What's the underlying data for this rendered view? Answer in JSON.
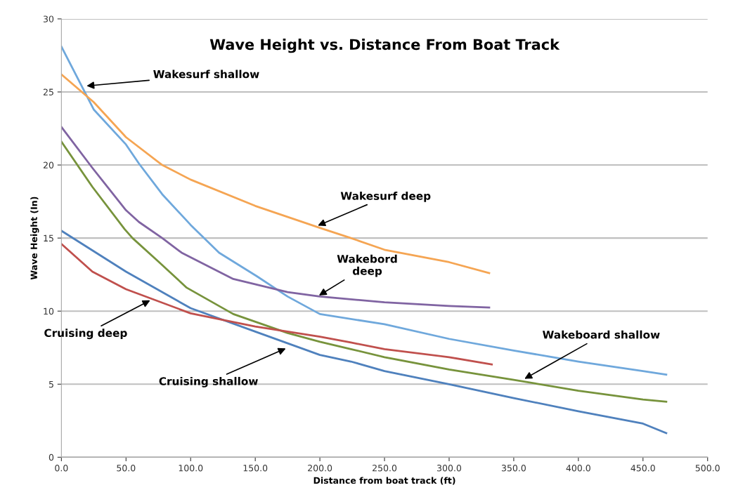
{
  "chart_data": {
    "type": "line",
    "title": "Wave Height vs. Distance From Boat Track",
    "xlabel": "Distance from boat track (ft)",
    "ylabel": "Wave Height (In)",
    "xlim": [
      0,
      500
    ],
    "ylim": [
      0,
      30
    ],
    "xticks": [
      {
        "value": 0,
        "label": "0.0"
      },
      {
        "value": 50,
        "label": "50.0"
      },
      {
        "value": 100,
        "label": "100.0"
      },
      {
        "value": 150,
        "label": "150.0"
      },
      {
        "value": 200,
        "label": "200.0"
      },
      {
        "value": 250,
        "label": "250.0"
      },
      {
        "value": 300,
        "label": "300.0"
      },
      {
        "value": 350,
        "label": "350.0"
      },
      {
        "value": 400,
        "label": "400.0"
      },
      {
        "value": 450,
        "label": "450.0"
      },
      {
        "value": 500,
        "label": "500.0"
      }
    ],
    "yticks": [
      0,
      5,
      10,
      15,
      20,
      25,
      30
    ],
    "grid": "y",
    "marker": "none",
    "line_style": "solid",
    "series": [
      {
        "color": "#6fa8dc",
        "x": [
          0,
          25,
          50,
          60,
          78,
          100,
          122,
          151,
          175,
          200,
          250,
          300,
          350,
          400,
          450,
          468
        ],
        "values": [
          28.1,
          23.8,
          21.4,
          20.1,
          18.0,
          15.9,
          14.0,
          12.4,
          11.0,
          9.8,
          9.1,
          8.1,
          7.3,
          6.55,
          5.9,
          5.65
        ]
      },
      {
        "color": "#f5a553",
        "x": [
          0,
          25,
          50,
          78,
          100,
          150,
          200,
          224,
          250,
          300,
          331
        ],
        "values": [
          26.2,
          24.3,
          21.9,
          20.0,
          19.0,
          17.2,
          15.7,
          15.0,
          14.2,
          13.35,
          12.6
        ]
      },
      {
        "color": "#8064a2",
        "x": [
          0,
          24,
          50,
          60,
          78,
          93,
          133,
          175,
          200,
          250,
          300,
          331
        ],
        "values": [
          22.6,
          19.8,
          16.9,
          16.1,
          15.0,
          14.0,
          12.2,
          11.3,
          11.0,
          10.6,
          10.35,
          10.25
        ]
      },
      {
        "color": "#77933c",
        "x": [
          0,
          24,
          49,
          55,
          75,
          97,
          133,
          175,
          200,
          224,
          250,
          300,
          350,
          400,
          450,
          468
        ],
        "values": [
          21.6,
          18.5,
          15.6,
          15.0,
          13.4,
          11.6,
          9.8,
          8.5,
          7.9,
          7.4,
          6.85,
          6.0,
          5.3,
          4.55,
          3.95,
          3.8
        ]
      },
      {
        "color": "#4f81bd",
        "x": [
          0,
          50,
          100,
          150,
          200,
          224,
          250,
          300,
          350,
          400,
          450,
          468
        ],
        "values": [
          15.5,
          12.7,
          10.2,
          8.6,
          7.0,
          6.55,
          5.9,
          5.0,
          4.05,
          3.15,
          2.3,
          1.65
        ]
      },
      {
        "color": "#c0504d",
        "x": [
          0,
          24,
          50,
          100,
          150,
          200,
          224,
          250,
          300,
          333
        ],
        "values": [
          14.6,
          12.7,
          11.5,
          9.85,
          8.95,
          8.25,
          7.85,
          7.4,
          6.85,
          6.35
        ]
      }
    ],
    "annotations": [
      {
        "text": "Wakesurf shallow",
        "x": 18,
        "y": 25.4
      },
      {
        "text": "Wakesurf deep",
        "x": 197,
        "y": 15.8
      },
      {
        "text": "Wakebord\ndeep",
        "x": 198,
        "y": 11.0
      },
      {
        "text": "Cruising deep",
        "x": 70,
        "y": 10.8
      },
      {
        "text": "Cruising shallow",
        "x": 175,
        "y": 7.5
      },
      {
        "text": "Wakeboard shallow",
        "x": 357,
        "y": 5.3
      }
    ]
  }
}
